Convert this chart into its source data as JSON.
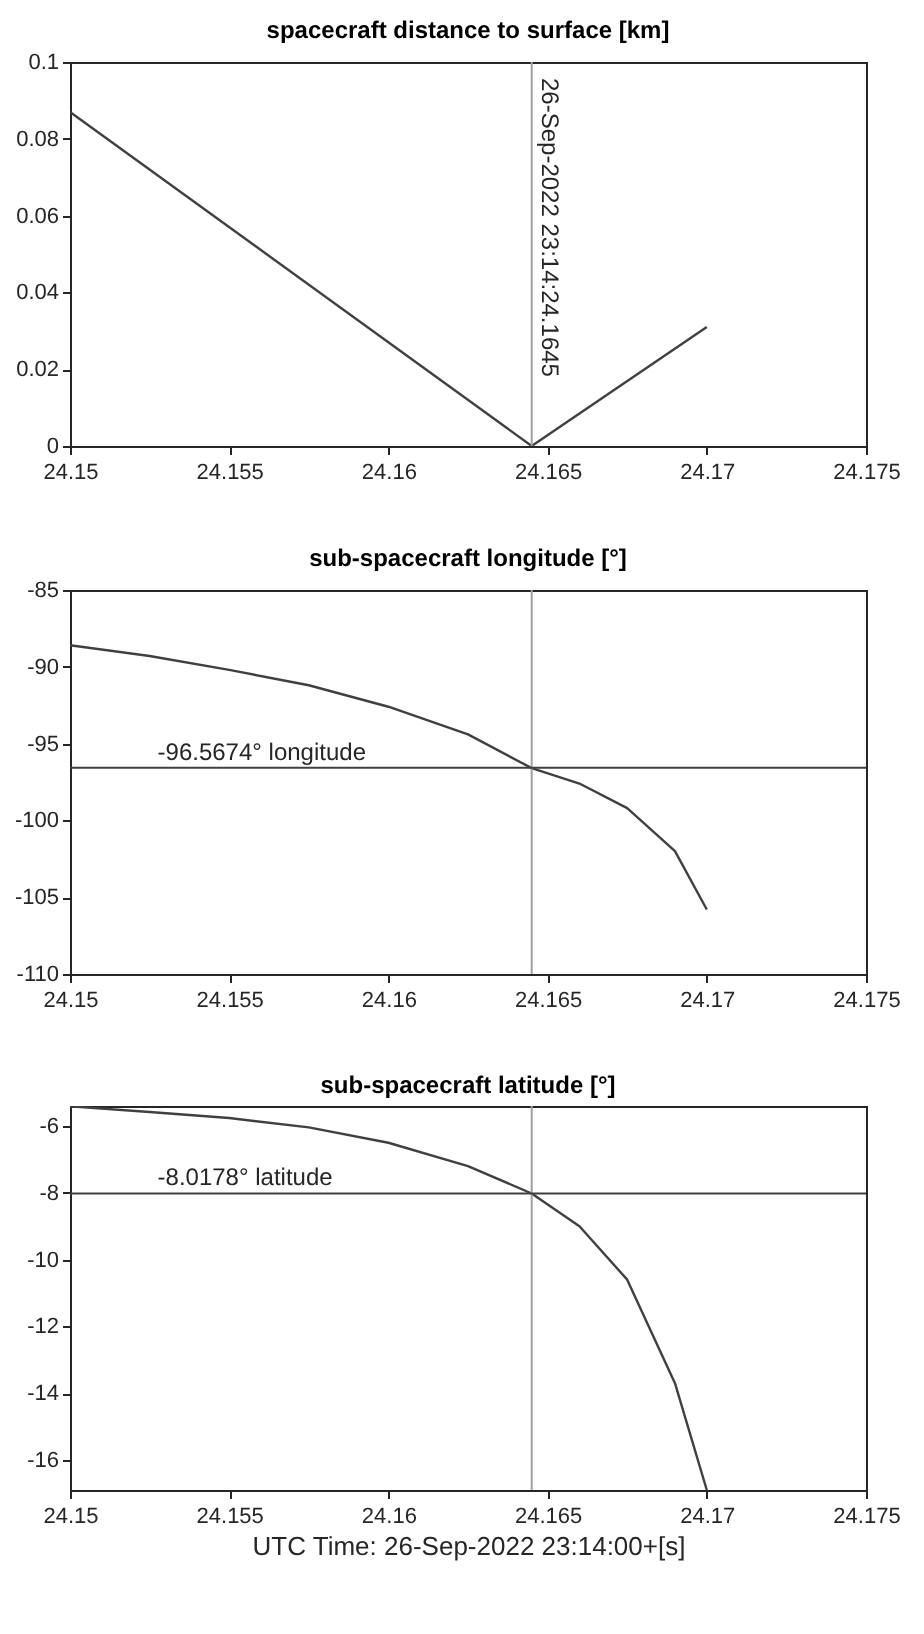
{
  "chart_data": [
    {
      "type": "line",
      "title": "spacecraft distance to surface [km]",
      "x": [
        24.15,
        24.1645,
        24.17
      ],
      "series": [
        {
          "color": "#404040",
          "values": [
            0.087,
            0,
            0.031
          ]
        }
      ],
      "xlim": [
        24.15,
        24.175
      ],
      "xticks": [
        24.15,
        24.155,
        24.16,
        24.165,
        24.17,
        24.175
      ],
      "ylim": [
        0,
        0.1
      ],
      "yticks": [
        0,
        0.02,
        0.04,
        0.06,
        0.08,
        0.1
      ],
      "ref_lines": [
        {
          "axis": "x",
          "value": 24.1645,
          "label": "26-Sep-2022 23:14:24.1645",
          "color": "#a0a0a0"
        }
      ]
    },
    {
      "type": "line",
      "title": "sub-spacecraft longitude [°]",
      "x": [
        24.15,
        24.1525,
        24.155,
        24.1575,
        24.16,
        24.1625,
        24.1645,
        24.166,
        24.1675,
        24.169,
        24.17
      ],
      "series": [
        {
          "color": "#404040",
          "values": [
            -88.6,
            -89.3,
            -90.2,
            -91.2,
            -92.6,
            -94.4,
            -96.6,
            -97.6,
            -99.2,
            -102.0,
            -105.8
          ]
        }
      ],
      "xlim": [
        24.15,
        24.175
      ],
      "xticks": [
        24.15,
        24.155,
        24.16,
        24.165,
        24.17,
        24.175
      ],
      "ylim": [
        -110,
        -85
      ],
      "yticks": [
        -110,
        -105,
        -100,
        -95,
        -90,
        -85
      ],
      "ref_lines": [
        {
          "axis": "x",
          "value": 24.1645,
          "color": "#a0a0a0"
        },
        {
          "axis": "y",
          "value": -96.5674,
          "label": "-96.5674° longitude",
          "color": "#404040"
        }
      ]
    },
    {
      "type": "line",
      "title": "sub-spacecraft latitude [°]",
      "xlabel": "UTC Time: 26-Sep-2022 23:14:00+[s]",
      "x": [
        24.15,
        24.1525,
        24.155,
        24.1575,
        24.16,
        24.1625,
        24.1645,
        24.166,
        24.1675,
        24.169,
        24.17
      ],
      "series": [
        {
          "color": "#404040",
          "values": [
            -5.41,
            -5.58,
            -5.76,
            -6.04,
            -6.5,
            -7.2,
            -8.02,
            -9.0,
            -10.6,
            -13.7,
            -16.9
          ]
        }
      ],
      "xlim": [
        24.15,
        24.175
      ],
      "xticks": [
        24.15,
        24.155,
        24.16,
        24.165,
        24.17,
        24.175
      ],
      "ylim": [
        -16.9,
        -5.4
      ],
      "yticks": [
        -16,
        -14,
        -12,
        -10,
        -8,
        -6
      ],
      "ref_lines": [
        {
          "axis": "x",
          "value": 24.1645,
          "color": "#a0a0a0"
        },
        {
          "axis": "y",
          "value": -8.0178,
          "label": "-8.0178° latitude",
          "color": "#404040"
        }
      ]
    }
  ]
}
